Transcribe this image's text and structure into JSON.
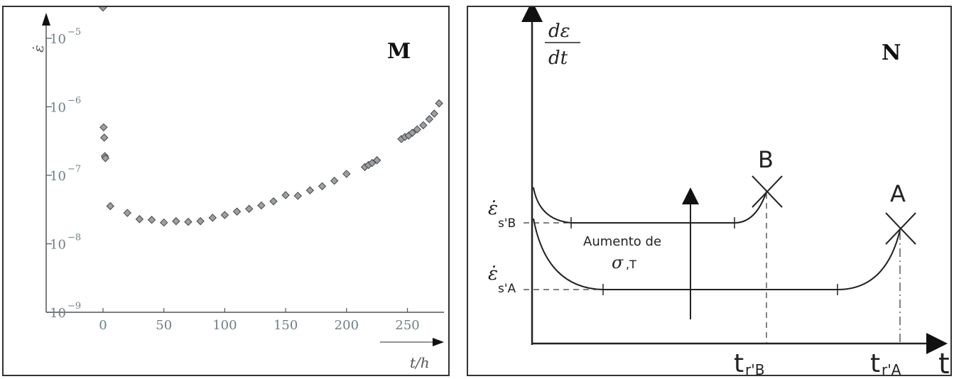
{
  "chart_data": [
    {
      "type": "scatter",
      "panel_label": "M",
      "xlabel": "t/h",
      "ylabel": "ε̇",
      "xlim": [
        0,
        280
      ],
      "ylim_exponent": [
        -9,
        -4.7
      ],
      "yscale": "log",
      "x_ticks": [
        0,
        50,
        100,
        150,
        200,
        250
      ],
      "y_ticks": [
        {
          "exp": -5,
          "label": "10",
          "sup": "−5"
        },
        {
          "exp": -6,
          "label": "10",
          "sup": "−6"
        },
        {
          "exp": -7,
          "label": "10",
          "sup": "−7"
        },
        {
          "exp": -8,
          "label": "10",
          "sup": "−8"
        },
        {
          "exp": -9,
          "label": "10",
          "sup": "−9"
        }
      ],
      "grid": false,
      "points_note": "y values given as log10(strain rate)",
      "points": [
        {
          "x": 0,
          "y": -4.55
        },
        {
          "x": 0.5,
          "y": -6.3
        },
        {
          "x": 1,
          "y": -6.45
        },
        {
          "x": 1.5,
          "y": -6.72
        },
        {
          "x": 2,
          "y": -6.75
        },
        {
          "x": 6,
          "y": -7.45
        },
        {
          "x": 20,
          "y": -7.55
        },
        {
          "x": 30,
          "y": -7.64
        },
        {
          "x": 40,
          "y": -7.65
        },
        {
          "x": 50,
          "y": -7.69
        },
        {
          "x": 60,
          "y": -7.67
        },
        {
          "x": 70,
          "y": -7.68
        },
        {
          "x": 80,
          "y": -7.67
        },
        {
          "x": 90,
          "y": -7.62
        },
        {
          "x": 100,
          "y": -7.58
        },
        {
          "x": 110,
          "y": -7.53
        },
        {
          "x": 120,
          "y": -7.49
        },
        {
          "x": 130,
          "y": -7.44
        },
        {
          "x": 140,
          "y": -7.38
        },
        {
          "x": 150,
          "y": -7.29
        },
        {
          "x": 160,
          "y": -7.3
        },
        {
          "x": 170,
          "y": -7.22
        },
        {
          "x": 180,
          "y": -7.16
        },
        {
          "x": 190,
          "y": -7.08
        },
        {
          "x": 200,
          "y": -6.98
        },
        {
          "x": 215,
          "y": -6.88
        },
        {
          "x": 218,
          "y": -6.85
        },
        {
          "x": 221,
          "y": -6.82
        },
        {
          "x": 225,
          "y": -6.78
        },
        {
          "x": 245,
          "y": -6.47
        },
        {
          "x": 248,
          "y": -6.44
        },
        {
          "x": 251,
          "y": -6.42
        },
        {
          "x": 254,
          "y": -6.38
        },
        {
          "x": 258,
          "y": -6.33
        },
        {
          "x": 263,
          "y": -6.27
        },
        {
          "x": 268,
          "y": -6.18
        },
        {
          "x": 272,
          "y": -6.1
        },
        {
          "x": 276,
          "y": -5.95
        }
      ]
    },
    {
      "type": "diagram",
      "panel_label": "N",
      "ylabel_num": "dε",
      "ylabel_den": "dt",
      "xlabel": "t",
      "curve_b_label": "B",
      "curve_a_label": "A",
      "eps_b_label": "ε̇",
      "eps_b_sub": "s'B",
      "eps_a_label": "ε̇",
      "eps_a_sub": "s'A",
      "tr_b_label": "t",
      "tr_b_sub": "r'B",
      "tr_a_label": "t",
      "tr_a_sub": "r'A",
      "annotation_line1": "Aumento de",
      "annotation_sigma": "σ",
      "annotation_rest": ",T"
    }
  ]
}
